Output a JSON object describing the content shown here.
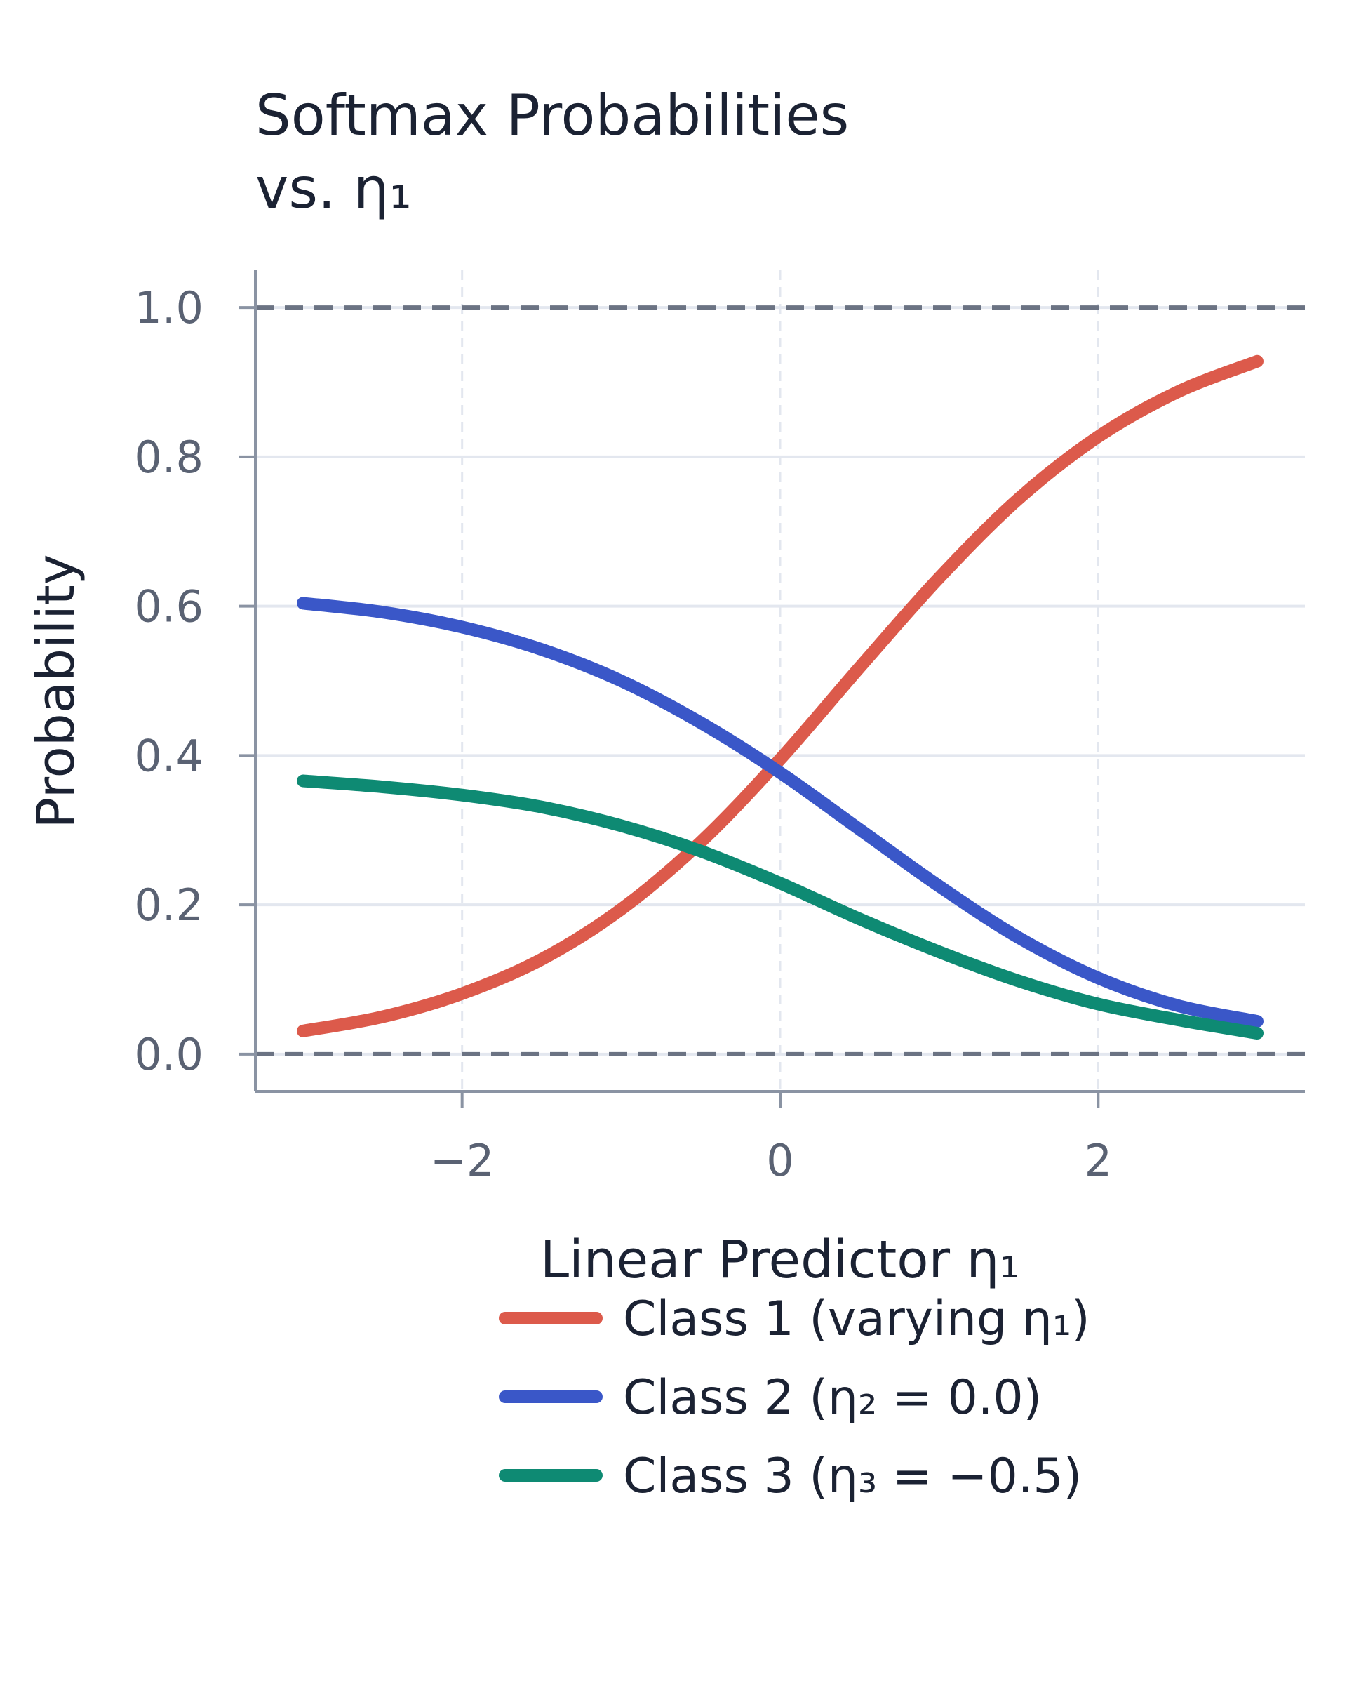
{
  "chart_data": {
    "type": "line",
    "title_line1": "Softmax Probabilities",
    "title_line2": "vs. η₁",
    "xlabel": "Linear Predictor η₁",
    "ylabel": "Probability",
    "xlim": [
      -3.3,
      3.3
    ],
    "ylim": [
      -0.05,
      1.05
    ],
    "xticks": [
      -2,
      0,
      2
    ],
    "xtick_labels": [
      "−2",
      "0",
      "2"
    ],
    "yticks": [
      0.0,
      0.2,
      0.4,
      0.6,
      0.8,
      1.0
    ],
    "ytick_labels": [
      "0.0",
      "0.2",
      "0.4",
      "0.6",
      "0.8",
      "1.0"
    ],
    "reference_lines": [
      0.0,
      1.0
    ],
    "grid": true,
    "legend_position": "bottom-center",
    "x": [
      -3.0,
      -2.5,
      -2.0,
      -1.5,
      -1.0,
      -0.5,
      0.0,
      0.5,
      1.0,
      1.5,
      2.0,
      2.5,
      3.0
    ],
    "series": [
      {
        "name": "Class 1 (varying η₁)",
        "color": "#dc5a4b",
        "values": [
          0.031,
          0.05,
          0.081,
          0.127,
          0.194,
          0.284,
          0.395,
          0.518,
          0.638,
          0.744,
          0.827,
          0.887,
          0.928
        ]
      },
      {
        "name": "Class 2 (η₂ = 0.0)",
        "color": "#3a57c8",
        "values": [
          0.604,
          0.592,
          0.572,
          0.542,
          0.5,
          0.444,
          0.377,
          0.301,
          0.225,
          0.156,
          0.102,
          0.065,
          0.044
        ]
      },
      {
        "name": "Class 3 (η₃ = −0.5)",
        "color": "#0e8a73",
        "values": [
          0.366,
          0.358,
          0.347,
          0.331,
          0.306,
          0.272,
          0.229,
          0.181,
          0.137,
          0.098,
          0.067,
          0.046,
          0.028
        ]
      }
    ]
  }
}
